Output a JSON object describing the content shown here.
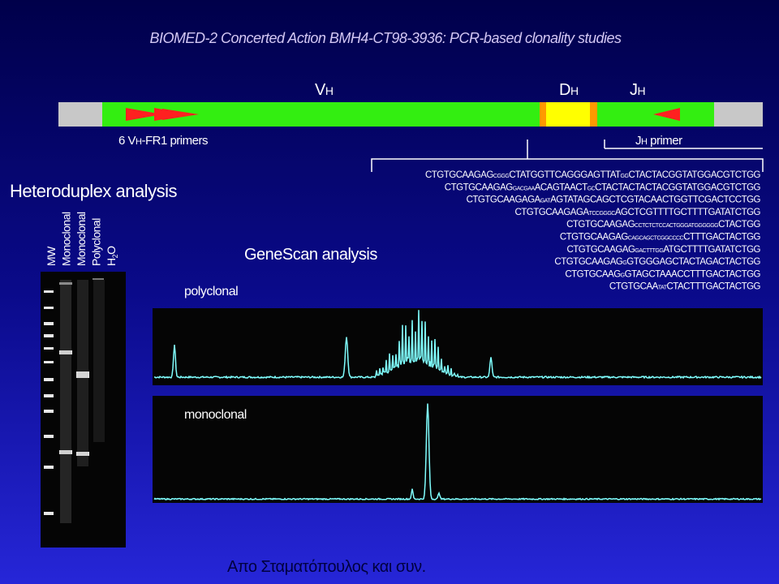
{
  "title": "BIOMED-2 Concerted Action BMH4-CT98-3936: PCR-based clonality studies",
  "gene": {
    "v_label": [
      "V",
      "H"
    ],
    "d_label": [
      "D",
      "H"
    ],
    "j_label": [
      "J",
      "H"
    ]
  },
  "primers": {
    "v_primers": [
      "6 V",
      "H",
      "-FR1 primers"
    ],
    "j_primer": [
      "J",
      "H",
      " primer"
    ]
  },
  "heteroduplex": {
    "title": "Heteroduplex analysis",
    "lanes": [
      [
        "MW"
      ],
      [
        "Monoclonal"
      ],
      [
        "Monoclonal"
      ],
      [
        "Polyclonal"
      ],
      [
        "H",
        "2",
        "O"
      ]
    ]
  },
  "genescan": {
    "title": "GeneScan analysis",
    "polyclonal": "polyclonal",
    "monoclonal": "monoclonal"
  },
  "sequences": [
    [
      "CTGTGCAAGAG",
      "CGGG",
      "CTATGGTTCAGGGAGTTAT",
      "GG",
      "CTACTACGGTATGGACGTCTGG"
    ],
    [
      "CTGTGCAAGAG",
      "GACGAA",
      "ACAGTAACT",
      "GC",
      "CTACTACTACTACGGTATGGACGTCTGG"
    ],
    [
      "CTGTGCAAGAGA",
      "GAT",
      "AGTATAGCAGCTCGTACAACTGGTTCGACTCCTGG"
    ],
    [
      "CTGTGCAAGAGA",
      "TCCGGGC",
      "AGCTCGTTTTGCTTTTGATATCTGG"
    ],
    [
      "CTGTGCAAGAG",
      "CCTCTCTCCACTGGGATGGGGGG",
      "CTACTGG"
    ],
    [
      "CTGTGCAAGAG",
      "CAGCAGCTCGGCCCC",
      "CTTTGACTACTGG"
    ],
    [
      "CTGTGCAAGAG",
      "GACTTTGG",
      "ATGCTTTTGATATCTGG"
    ],
    [
      "CTGTGCAAGAG",
      "G",
      "GTGGGAGCTACTAGACTACTGG"
    ],
    [
      "CTGTGCAAG",
      "G",
      "GTAGCTAAACCTTTGACTACTGG"
    ],
    [
      "CTGTGCAA",
      "TAT",
      "CTACTTTGACTACTGG"
    ]
  ],
  "footer": "Απο Σταματόπουλος και συν."
}
